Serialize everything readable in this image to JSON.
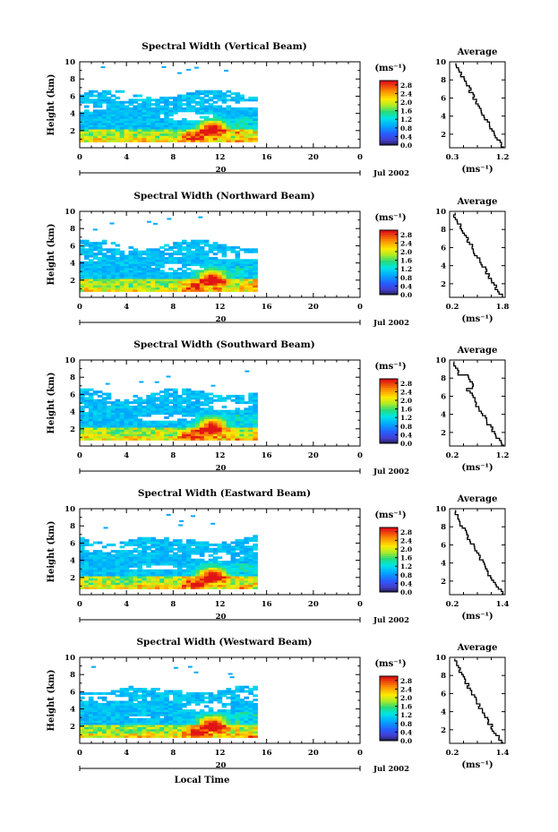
{
  "figure": {
    "units_label": "(ms⁻¹)",
    "date_label": "Jul 2002",
    "day_label": "20",
    "local_time_label": "Local Time",
    "height_label": "Height (km)",
    "avg_title": "Average",
    "avg_xlabel": "(ms⁻¹)"
  },
  "chart_data": [
    {
      "type": "heatmap",
      "title": "Spectral Width (Vertical Beam)",
      "xlabel": "",
      "ylabel": "Height (km)",
      "xlim": [
        0,
        24
      ],
      "ylim": [
        0,
        10
      ],
      "xticks": [
        "0",
        "4",
        "8",
        "12",
        "16",
        "20",
        "0"
      ],
      "yticks": [
        "2",
        "4",
        "6",
        "8",
        "10"
      ],
      "colorbar": {
        "ticks": [
          "0.0",
          "0.4",
          "0.8",
          "1.2",
          "1.6",
          "2.0",
          "2.4",
          "2.8"
        ],
        "range": [
          0,
          3.0
        ]
      },
      "data_extent_hours": [
        0,
        15.2
      ],
      "top_height_km": 6.6,
      "profile": {
        "title": "Average",
        "xticks": [
          "0.3",
          "1.2"
        ],
        "xlim": [
          0.3,
          1.2
        ],
        "yticks": [
          "2",
          "4",
          "6",
          "8",
          "10"
        ],
        "ylim": [
          0.5,
          10
        ],
        "x_start": 0.4,
        "x_end": 1.18
      }
    },
    {
      "type": "heatmap",
      "title": "Spectral Width (Northward Beam)",
      "xlabel": "",
      "ylabel": "Height (km)",
      "xlim": [
        0,
        24
      ],
      "ylim": [
        0,
        10
      ],
      "xticks": [
        "0",
        "4",
        "8",
        "12",
        "16",
        "20",
        "0"
      ],
      "yticks": [
        "2",
        "4",
        "6",
        "8",
        "10"
      ],
      "colorbar": {
        "ticks": [
          "0.0",
          "0.4",
          "0.8",
          "1.2",
          "1.6",
          "2.0",
          "2.4",
          "2.8"
        ],
        "range": [
          0,
          3.0
        ]
      },
      "data_extent_hours": [
        0,
        15.2
      ],
      "top_height_km": 6.5,
      "profile": {
        "title": "Average",
        "xticks": [
          "0.2",
          "1.8"
        ],
        "xlim": [
          0.2,
          1.8
        ],
        "yticks": [
          "2",
          "4",
          "6",
          "8",
          "10"
        ],
        "ylim": [
          0.5,
          10
        ],
        "x_start": 0.3,
        "x_end": 1.75
      }
    },
    {
      "type": "heatmap",
      "title": "Spectral Width (Southward Beam)",
      "xlabel": "",
      "ylabel": "Height (km)",
      "xlim": [
        0,
        24
      ],
      "ylim": [
        0,
        10
      ],
      "xticks": [
        "0",
        "4",
        "8",
        "12",
        "16",
        "20",
        "0"
      ],
      "yticks": [
        "2",
        "4",
        "6",
        "8",
        "10"
      ],
      "colorbar": {
        "ticks": [
          "0.0",
          "0.4",
          "0.8",
          "1.2",
          "1.6",
          "2.0",
          "2.4",
          "2.8"
        ],
        "range": [
          0,
          3.0
        ]
      },
      "data_extent_hours": [
        0,
        15.2
      ],
      "top_height_km": 6.6,
      "profile": {
        "title": "Average",
        "xticks": [
          "0.2",
          "1.2"
        ],
        "xlim": [
          0.2,
          1.2
        ],
        "yticks": [
          "2",
          "4",
          "6",
          "8",
          "10"
        ],
        "ylim": [
          0.5,
          10
        ],
        "x_start": 0.25,
        "x_end": 1.18
      }
    },
    {
      "type": "heatmap",
      "title": "Spectral Width (Eastward Beam)",
      "xlabel": "",
      "ylabel": "Height (km)",
      "xlim": [
        0,
        24
      ],
      "ylim": [
        0,
        10
      ],
      "xticks": [
        "0",
        "4",
        "8",
        "12",
        "16",
        "20",
        "0"
      ],
      "yticks": [
        "2",
        "4",
        "6",
        "8",
        "10"
      ],
      "colorbar": {
        "ticks": [
          "0.0",
          "0.4",
          "0.8",
          "1.2",
          "1.6",
          "2.0",
          "2.4",
          "2.8"
        ],
        "range": [
          0,
          3.0
        ]
      },
      "data_extent_hours": [
        0,
        15.2
      ],
      "top_height_km": 6.8,
      "profile": {
        "title": "Average",
        "xticks": [
          "0.2",
          "1.4"
        ],
        "xlim": [
          0.2,
          1.4
        ],
        "yticks": [
          "2",
          "4",
          "6",
          "8",
          "10"
        ],
        "ylim": [
          0.5,
          10
        ],
        "x_start": 0.28,
        "x_end": 1.36
      }
    },
    {
      "type": "heatmap",
      "title": "Spectral Width (Westward Beam)",
      "xlabel": "Local Time",
      "ylabel": "Height (km)",
      "xlim": [
        0,
        24
      ],
      "ylim": [
        0,
        10
      ],
      "xticks": [
        "0",
        "4",
        "8",
        "12",
        "16",
        "20",
        "0"
      ],
      "yticks": [
        "2",
        "4",
        "6",
        "8",
        "10"
      ],
      "colorbar": {
        "ticks": [
          "0.0",
          "0.4",
          "0.8",
          "1.2",
          "1.6",
          "2.0",
          "2.4",
          "2.8"
        ],
        "range": [
          0,
          3.0
        ]
      },
      "data_extent_hours": [
        0,
        15.2
      ],
      "top_height_km": 6.6,
      "profile": {
        "title": "Average",
        "xticks": [
          "0.2",
          "1.4"
        ],
        "xlim": [
          0.2,
          1.4
        ],
        "yticks": [
          "2",
          "4",
          "6",
          "8",
          "10"
        ],
        "ylim": [
          0.5,
          10
        ],
        "x_start": 0.28,
        "x_end": 1.36
      }
    }
  ]
}
